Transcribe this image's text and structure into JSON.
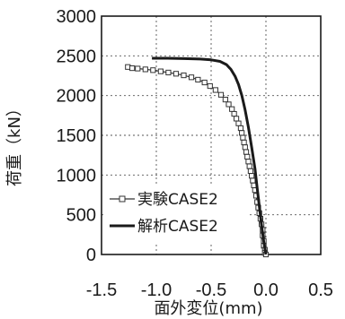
{
  "chart_data": {
    "type": "line",
    "xlabel": "面外変位(mm)",
    "ylabel": "荷重（kN）",
    "xlim": [
      -1.5,
      0.5
    ],
    "ylim": [
      0,
      3000
    ],
    "x_ticks": [
      "-1.5",
      "-1.0",
      "-0.5",
      "0.0",
      "0.5"
    ],
    "y_ticks": [
      "0",
      "500",
      "1000",
      "1500",
      "2000",
      "2500",
      "3000"
    ],
    "grid": "dotted, both axes",
    "legend_position": "lower-left inside plot",
    "series": [
      {
        "name": "実験CASE2",
        "marker": "open-square",
        "color": "#333333",
        "x": [
          -1.26,
          -1.22,
          -1.17,
          -1.1,
          -1.03,
          -0.96,
          -0.89,
          -0.82,
          -0.75,
          -0.68,
          -0.62,
          -0.56,
          -0.51,
          -0.46,
          -0.41,
          -0.37,
          -0.34,
          -0.31,
          -0.29,
          -0.27,
          -0.25,
          -0.23,
          -0.22,
          -0.21,
          -0.2,
          -0.19,
          -0.18,
          -0.17,
          -0.16,
          -0.15,
          -0.14,
          -0.13,
          -0.12,
          -0.11,
          -0.1,
          -0.09,
          -0.08,
          -0.07,
          -0.06,
          -0.05,
          -0.04,
          -0.03,
          -0.03,
          -0.02,
          -0.02,
          -0.01,
          -0.01,
          0.0
        ],
        "y": [
          2360,
          2345,
          2340,
          2330,
          2320,
          2305,
          2290,
          2275,
          2255,
          2230,
          2200,
          2165,
          2120,
          2070,
          2010,
          1950,
          1890,
          1830,
          1770,
          1710,
          1650,
          1590,
          1530,
          1470,
          1410,
          1350,
          1290,
          1230,
          1170,
          1110,
          1050,
          990,
          930,
          870,
          810,
          740,
          660,
          590,
          520,
          450,
          380,
          310,
          240,
          170,
          110,
          60,
          20,
          0
        ]
      },
      {
        "name": "解析CASE2",
        "marker": "none",
        "color": "#1a1a1a",
        "x": [
          -1.04,
          -0.9,
          -0.75,
          -0.6,
          -0.5,
          -0.42,
          -0.36,
          -0.32,
          -0.28,
          -0.25,
          -0.22,
          -0.19,
          -0.16,
          -0.13,
          -0.1,
          -0.08,
          -0.06,
          -0.04,
          -0.02,
          0.0
        ],
        "y": [
          2470,
          2470,
          2465,
          2460,
          2450,
          2430,
          2390,
          2330,
          2240,
          2140,
          2000,
          1820,
          1600,
          1350,
          1080,
          840,
          600,
          370,
          160,
          0
        ]
      }
    ]
  }
}
